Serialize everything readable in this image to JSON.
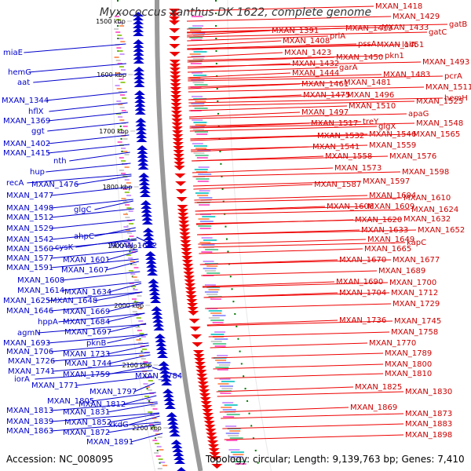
{
  "title": "Myxococcus xanthus DK 1622, complete genome",
  "footer": {
    "accession": "Accession: NC_008095",
    "topology": "Topology: circular; Length: 9,139,763 bp; Genes: 7,410"
  },
  "ticks": [
    "1500 kbp",
    "1600 kbp",
    "1700 kbp",
    "1800 kbp",
    "1900 kbp",
    "2000 kbp",
    "2100 kbp",
    "2200 kbp"
  ],
  "colors": {
    "forward": "#0000cc",
    "reverse": "#ee0000",
    "backbone": "#999999",
    "ticks": "#007700"
  },
  "left_labels": [
    "miaE",
    "hemG",
    "aat",
    "MXAN_1344",
    "hflX",
    "MXAN_1369",
    "ggt",
    "MXAN_1402",
    "MXAN_1415",
    "nth",
    "hup",
    "recA",
    "MXAN_1476",
    "MXAN_1477",
    "MXAN_1498",
    "glgC",
    "MXAN_1512",
    "MXAN_1529",
    "ahpC",
    "MXAN_1542",
    "MXAN_1560",
    "cysK",
    "MXAN_1602",
    "MXAN_1577",
    "MXAN_1601",
    "MXAN_1591",
    "MXAN_1607",
    "MXAN_1608",
    "MXAN_1614",
    "MXAN_1634",
    "MXAN_1625",
    "MXAN_1648",
    "MXAN_1646",
    "MXAN_1669",
    "hppA",
    "MXAN_1684",
    "agmN",
    "MXAN_1697",
    "MXAN_1693",
    "pknB",
    "MXAN_1706",
    "MXAN_1733",
    "MXAN_1726",
    "MXAN_1744",
    "MXAN_1741",
    "MXAN_1759",
    "MXAN_1784",
    "iorA",
    "MXAN_1771",
    "MXAN_1797",
    "MXAN_1805",
    "MXAN_1812",
    "MXAN_1813",
    "MXAN_1831",
    "MXAN_1839",
    "MXAN_1852",
    "xkdG",
    "MXAN_1863",
    "MXAN_1872",
    "MXAN_1891"
  ],
  "right_labels": [
    "MXAN_1418",
    "MXAN_1429",
    "MXAN_1391",
    "MXAN_1419",
    "MXAN_1433",
    "gatC",
    "gatB",
    "MXAN_1408",
    "priA",
    "pssA",
    "MXAN_1451",
    "lolA",
    "MXAN_1423",
    "MXAN_1450",
    "pkn1",
    "MXAN_1432",
    "garA",
    "MXAN_1493",
    "MXAN_1444",
    "MXAN_1483",
    "pcrA",
    "MXAN_1461",
    "MXAN_1481",
    "MXAN_1511",
    "MXAN_1475",
    "MXAN_1496",
    "MXAN_1525",
    "hemH",
    "MXAN_1497",
    "MXAN_1510",
    "apaG",
    "MXAN_1517",
    "treY",
    "glgX",
    "MXAN_1548",
    "MXAN_1532",
    "MXAN_1546",
    "MXAN_1565",
    "MXAN_1541",
    "MXAN_1559",
    "MXAN_1558",
    "MXAN_1576",
    "MXAN_1573",
    "MXAN_1598",
    "MXAN_1587",
    "MXAN_1597",
    "MXAN_1604",
    "MXAN_1610",
    "MXAN_1606",
    "MXAN_1609",
    "MXAN_1624",
    "MXAN_1620",
    "MXAN_1632",
    "MXAN_1633",
    "MXAN_1652",
    "MXAN_1649",
    "kapC",
    "MXAN_1665",
    "MXAN_1670",
    "MXAN_1677",
    "MXAN_1689",
    "MXAN_1690",
    "MXAN_1700",
    "MXAN_1704",
    "MXAN_1712",
    "MXAN_1729",
    "MXAN_1736",
    "MXAN_1745",
    "MXAN_1758",
    "MXAN_1770",
    "MXAN_1789",
    "MXAN_1800",
    "MXAN_1810",
    "MXAN_1825",
    "MXAN_1830",
    "MXAN_1869",
    "MXAN_1873",
    "MXAN_1883",
    "MXAN_1898"
  ]
}
